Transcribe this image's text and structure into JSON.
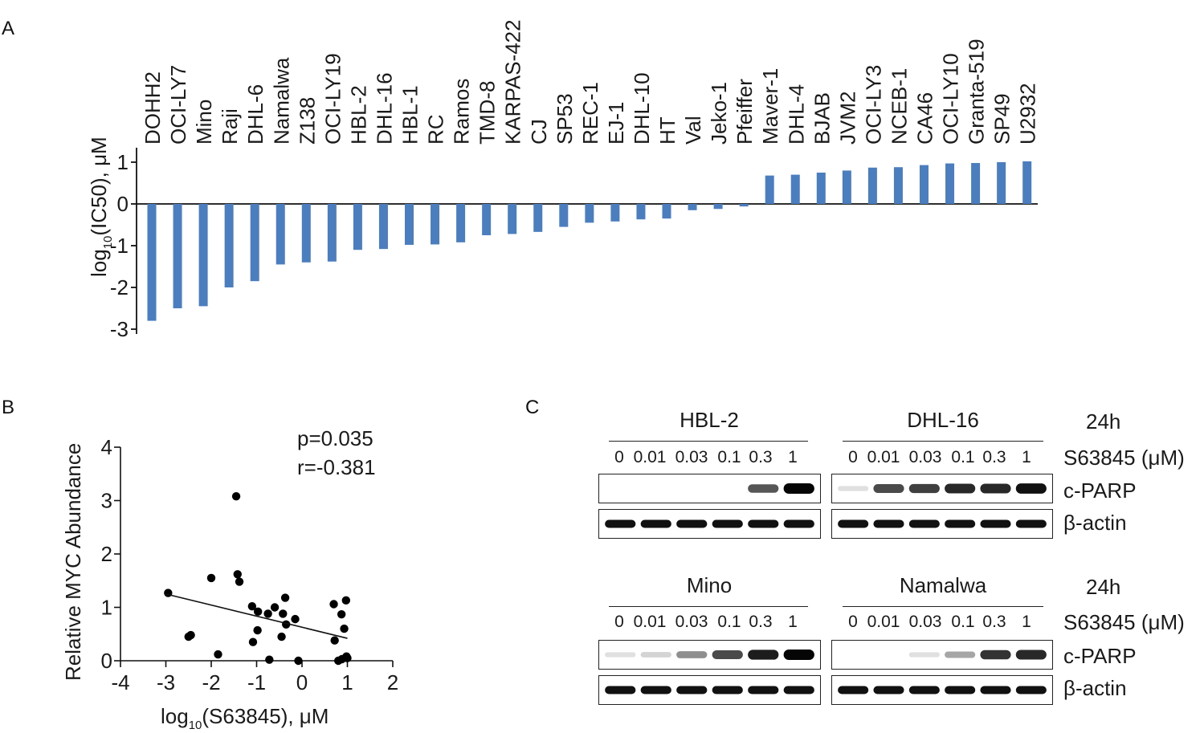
{
  "panels": {
    "a": "A",
    "b": "B",
    "c": "C"
  },
  "chart_data": [
    {
      "type": "bar",
      "panel": "A",
      "ylabel_main": "log",
      "ylabel_sub": "10",
      "ylabel_rest": "(IC50), μM",
      "ylim": [
        -3,
        1.4
      ],
      "yticks": [
        1,
        0,
        -1,
        -2,
        -3
      ],
      "ytick_labels": [
        "1",
        "0",
        "-1",
        "-2",
        "-3"
      ],
      "color": "#4a7ebf",
      "categories": [
        "DOHH2",
        "OCI-LY7",
        "Mino",
        "Raji",
        "DHL-6",
        "Namalwa",
        "Z138",
        "OCI-LY19",
        "HBL-2",
        "DHL-16",
        "HBL-1",
        "RC",
        "Ramos",
        "TMD-8",
        "KARPAS-422",
        "CJ",
        "SP53",
        "REC-1",
        "EJ-1",
        "DHL-10",
        "HT",
        "Val",
        "Jeko-1",
        "Pfeiffer",
        "Maver-1",
        "DHL-4",
        "BJAB",
        "JVM2",
        "OCI-LY3",
        "NCEB-1",
        "CA46",
        "OCI-LY10",
        "Granta-519",
        "SP49",
        "U2932"
      ],
      "values": [
        -2.8,
        -2.5,
        -2.45,
        -2.0,
        -1.85,
        -1.45,
        -1.4,
        -1.38,
        -1.1,
        -1.08,
        -0.98,
        -0.97,
        -0.92,
        -0.75,
        -0.72,
        -0.67,
        -0.55,
        -0.45,
        -0.42,
        -0.37,
        -0.35,
        -0.15,
        -0.12,
        -0.06,
        0.68,
        0.7,
        0.75,
        0.8,
        0.87,
        0.88,
        0.93,
        0.97,
        0.98,
        1.0,
        1.02
      ]
    },
    {
      "type": "scatter",
      "panel": "B",
      "xlabel_main": "log",
      "xlabel_sub": "10",
      "xlabel_rest": "(S63845), μM",
      "ylabel": "Relative MYC Abundance",
      "xlim": [
        -4,
        2
      ],
      "ylim": [
        0,
        4
      ],
      "xticks": [
        -4,
        -3,
        -2,
        -1,
        0,
        1,
        2
      ],
      "xtick_labels": [
        "-4",
        "-3",
        "-2",
        "-1",
        "0",
        "1",
        "2"
      ],
      "yticks": [
        0,
        1,
        2,
        3,
        4
      ],
      "ytick_labels": [
        "0",
        "1",
        "2",
        "3",
        "4"
      ],
      "annotation_p": "p=0.035",
      "annotation_r": "r=-0.381",
      "points": [
        {
          "x": -2.95,
          "y": 1.27
        },
        {
          "x": -2.5,
          "y": 0.45
        },
        {
          "x": -2.45,
          "y": 0.48
        },
        {
          "x": -2.0,
          "y": 1.55
        },
        {
          "x": -1.85,
          "y": 0.12
        },
        {
          "x": -1.45,
          "y": 3.08
        },
        {
          "x": -1.42,
          "y": 1.62
        },
        {
          "x": -1.38,
          "y": 1.48
        },
        {
          "x": -1.1,
          "y": 1.02
        },
        {
          "x": -1.08,
          "y": 0.35
        },
        {
          "x": -0.98,
          "y": 0.57
        },
        {
          "x": -0.97,
          "y": 0.92
        },
        {
          "x": -0.75,
          "y": 0.88
        },
        {
          "x": -0.72,
          "y": 0.02
        },
        {
          "x": -0.6,
          "y": 1.0
        },
        {
          "x": -0.45,
          "y": 0.45
        },
        {
          "x": -0.42,
          "y": 0.88
        },
        {
          "x": -0.37,
          "y": 1.18
        },
        {
          "x": -0.35,
          "y": 0.68
        },
        {
          "x": -0.15,
          "y": 0.78
        },
        {
          "x": -0.08,
          "y": 0.0
        },
        {
          "x": 0.7,
          "y": 1.06
        },
        {
          "x": 0.72,
          "y": 0.38
        },
        {
          "x": 0.8,
          "y": 0.0
        },
        {
          "x": 0.87,
          "y": 0.87
        },
        {
          "x": 0.88,
          "y": 0.03
        },
        {
          "x": 0.93,
          "y": 0.6
        },
        {
          "x": 0.97,
          "y": 1.13
        },
        {
          "x": 0.98,
          "y": 0.08
        },
        {
          "x": 1.0,
          "y": 0.05
        }
      ],
      "trendline": {
        "x": [
          -3,
          1
        ],
        "y": [
          1.25,
          0.42
        ]
      }
    }
  ],
  "blots": {
    "doses": [
      "0",
      "0.01",
      "0.03",
      "0.1",
      "0.3",
      "1"
    ],
    "time_label": "24h",
    "treatment_label": "S63845 (μM)",
    "band_labels": [
      "c-PARP",
      "β-actin"
    ],
    "cells": [
      {
        "name": "HBL-2",
        "parp_intensity": [
          0,
          0,
          0,
          0,
          0.65,
          1
        ]
      },
      {
        "name": "DHL-16",
        "parp_intensity": [
          0.05,
          0.7,
          0.75,
          0.85,
          0.85,
          0.95
        ]
      },
      {
        "name": "Mino",
        "parp_intensity": [
          0.05,
          0.1,
          0.4,
          0.7,
          0.9,
          1
        ]
      },
      {
        "name": "Namalwa",
        "parp_intensity": [
          0,
          0,
          0.05,
          0.3,
          0.8,
          0.85
        ]
      }
    ]
  }
}
